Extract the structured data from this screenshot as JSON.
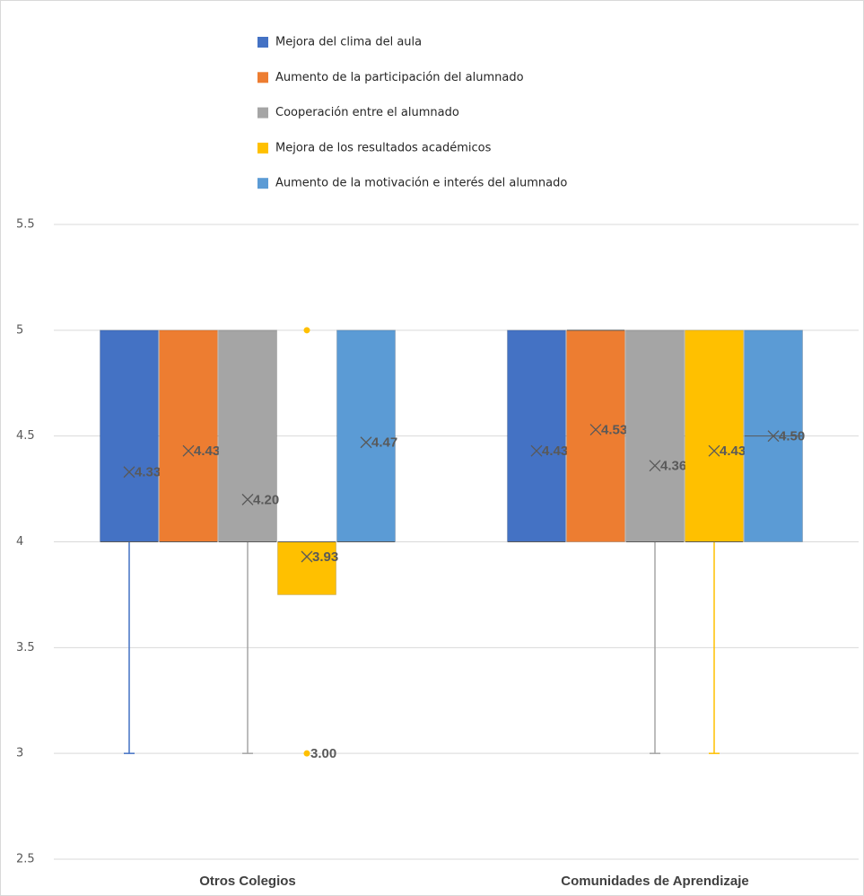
{
  "chart_data": {
    "type": "box",
    "categories": [
      "Otros Colegios",
      "Comunidades de Aprendizaje"
    ],
    "ylim": [
      2.5,
      5.5
    ],
    "yticks": [
      2.5,
      3,
      3.5,
      4,
      4.5,
      5,
      5.5
    ],
    "grid": true,
    "legend": "top",
    "series": [
      {
        "name": "Mejora del clima del aula",
        "color": "#4472c4",
        "min": [
          3,
          4
        ],
        "q1": [
          4,
          4
        ],
        "median": [
          4,
          4
        ],
        "q3": [
          5,
          5
        ],
        "max": [
          5,
          5
        ],
        "mean": [
          4.33,
          4.43
        ],
        "mean_labels": [
          "4.33",
          "4.43"
        ],
        "outliers": [
          [],
          []
        ],
        "outlier_labels": [
          [],
          []
        ]
      },
      {
        "name": "Aumento de la participación del alumnado",
        "color": "#ed7d31",
        "min": [
          4,
          4
        ],
        "q1": [
          4,
          4
        ],
        "median": [
          4,
          5
        ],
        "q3": [
          5,
          5
        ],
        "max": [
          5,
          5
        ],
        "mean": [
          4.43,
          4.53
        ],
        "mean_labels": [
          "4.43",
          "4.53"
        ],
        "outliers": [
          [],
          []
        ],
        "outlier_labels": [
          [],
          []
        ]
      },
      {
        "name": "Cooperación entre el alumnado",
        "color": "#a5a5a5",
        "min": [
          3,
          3
        ],
        "q1": [
          4,
          4
        ],
        "median": [
          4,
          4
        ],
        "q3": [
          5,
          5
        ],
        "max": [
          5,
          5
        ],
        "mean": [
          4.2,
          4.36
        ],
        "mean_labels": [
          "4.20",
          "4.36"
        ],
        "outliers": [
          [],
          []
        ],
        "outlier_labels": [
          [],
          []
        ]
      },
      {
        "name": "Mejora de los resultados académicos",
        "color": "#ffc000",
        "min": [
          3.75,
          3
        ],
        "q1": [
          3.75,
          4
        ],
        "median": [
          4,
          4
        ],
        "q3": [
          4,
          5
        ],
        "max": [
          4,
          5
        ],
        "mean": [
          3.93,
          4.43
        ],
        "mean_labels": [
          "3.93",
          "4.43"
        ],
        "outliers": [
          [
            5,
            3
          ],
          []
        ],
        "outlier_labels": [
          [
            null,
            "3.00"
          ],
          []
        ]
      },
      {
        "name": "Aumento de la motivación e interés del alumnado",
        "color": "#5b9bd5",
        "min": [
          4,
          4
        ],
        "q1": [
          4,
          4
        ],
        "median": [
          4,
          4.5
        ],
        "q3": [
          5,
          5
        ],
        "max": [
          5,
          5
        ],
        "mean": [
          4.47,
          4.5
        ],
        "mean_labels": [
          "4.47",
          "4.50"
        ],
        "outliers": [
          [],
          []
        ],
        "outlier_labels": [
          [],
          []
        ]
      }
    ]
  }
}
